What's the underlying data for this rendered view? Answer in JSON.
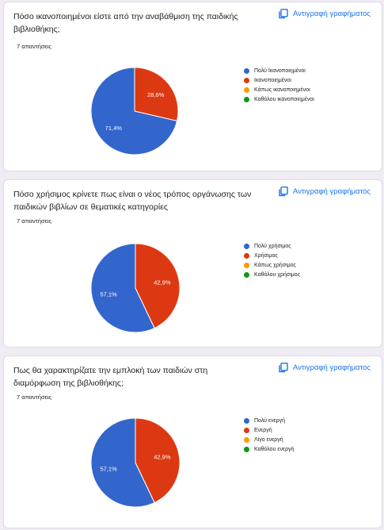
{
  "copy_label": "Αντιγραφή γραφήματος",
  "colors": {
    "blue": "#3366cc",
    "red": "#dc3912",
    "orange": "#ff9900",
    "green": "#109618"
  },
  "questions": [
    {
      "title": "Πόσο ικανοποιημένοι είστε από την αναβάθμιση της παιδικής βιβλιοθήκης;",
      "responses": "7 απαντήσεις",
      "legend": [
        "Πολύ Ικανοποιημένοι",
        "Ικανοποιημένοι",
        "Κάπως ικανοποιημένοι",
        "Καθόλου ικανοποιημένοι"
      ]
    },
    {
      "title": "Πόσο χρήσιμος κρίνετε πως είναι ο νέος τρόπος οργάνωσης των παιδικών βιβλίων σε θεματικές κατηγορίες",
      "responses": "7 απαντήσεις",
      "legend": [
        "Πολύ χρήσιμος",
        "Χρήσιμος",
        "Κάπως χρήσιμος",
        "Καθόλου χρήσιμος"
      ]
    },
    {
      "title": "Πως θα χαρακτηρίζατε την εμπλοκή των παιδιών στη διαμόρφωση της  βιβλιοθήκης;",
      "responses": "7 απαντήσεις",
      "legend": [
        "Πολύ ενεργή",
        "Ενεργή",
        "Λίγο ενεργή",
        "Καθόλου ενεργή"
      ]
    }
  ],
  "chart_data": [
    {
      "type": "pie",
      "categories": [
        "Πολύ Ικανοποιημένοι",
        "Ικανοποιημένοι",
        "Κάπως ικανοποιημένοι",
        "Καθόλου ικανοποιημένοι"
      ],
      "values": [
        71.4,
        28.6,
        0,
        0
      ],
      "labels": [
        "71,4%",
        "28,6%",
        "",
        ""
      ],
      "legend_position": "right"
    },
    {
      "type": "pie",
      "categories": [
        "Πολύ χρήσιμος",
        "Χρήσιμος",
        "Κάπως χρήσιμος",
        "Καθόλου χρήσιμος"
      ],
      "values": [
        57.1,
        42.9,
        0,
        0
      ],
      "labels": [
        "57,1%",
        "42,9%",
        "",
        ""
      ],
      "legend_position": "right"
    },
    {
      "type": "pie",
      "categories": [
        "Πολύ ενεργή",
        "Ενεργή",
        "Λίγο ενεργή",
        "Καθόλου ενεργή"
      ],
      "values": [
        57.1,
        42.9,
        0,
        0
      ],
      "labels": [
        "57,1%",
        "42,9%",
        "",
        ""
      ],
      "legend_position": "right"
    }
  ]
}
